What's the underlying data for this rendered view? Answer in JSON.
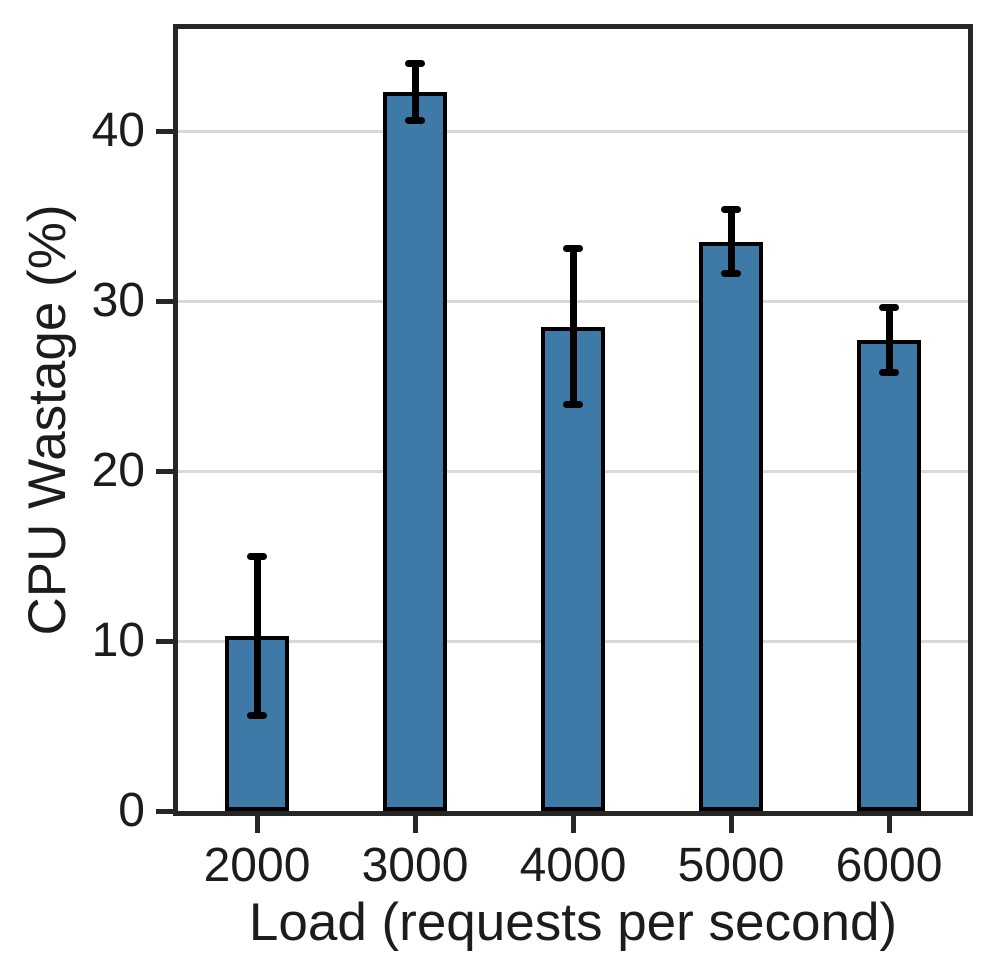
{
  "chart_data": {
    "type": "bar",
    "title": "",
    "xlabel": "Load (requests per second)",
    "ylabel": "CPU Wastage (%)",
    "categories": [
      "2000",
      "3000",
      "4000",
      "5000",
      "6000"
    ],
    "values": [
      10.3,
      42.3,
      28.5,
      33.5,
      27.7
    ],
    "errors": [
      4.7,
      1.7,
      4.6,
      1.9,
      1.9
    ],
    "yticks": [
      0,
      10,
      20,
      30,
      40
    ],
    "ylim": [
      0,
      46
    ],
    "grid": true,
    "legend_position": "none",
    "colors": {
      "bar_fill": "#3D7AA8",
      "bar_edge": "#000000",
      "error_bar": "#000000",
      "gridline": "#D9D9D9",
      "spine": "#262626",
      "text": "#1C1C1C",
      "background": "#FFFFFF"
    }
  }
}
